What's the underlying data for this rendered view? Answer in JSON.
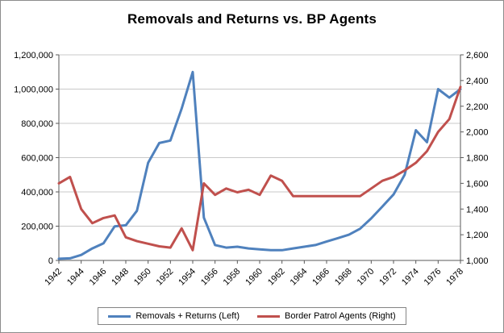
{
  "colors": {
    "series_blue": "#4F81BD",
    "series_red": "#C0504D",
    "gridline": "#C9C9C9",
    "axis": "#595959",
    "text": "#000000",
    "frame_border": "#8C8C8C"
  },
  "chart_data": {
    "type": "line",
    "title": "Removals and Returns vs. BP Agents",
    "x": [
      1942,
      1943,
      1944,
      1945,
      1946,
      1947,
      1948,
      1949,
      1950,
      1951,
      1952,
      1953,
      1954,
      1955,
      1956,
      1957,
      1958,
      1959,
      1960,
      1961,
      1962,
      1963,
      1964,
      1965,
      1966,
      1967,
      1968,
      1969,
      1970,
      1971,
      1972,
      1973,
      1974,
      1975,
      1976,
      1977,
      1978
    ],
    "x_label_every": 2,
    "x_tick_labels": [
      "1942",
      "1944",
      "1946",
      "1948",
      "1950",
      "1952",
      "1954",
      "1956",
      "1958",
      "1960",
      "1962",
      "1964",
      "1966",
      "1968",
      "1970",
      "1972",
      "1974",
      "1976",
      "1978"
    ],
    "left_axis": {
      "min": 0,
      "max": 1200000,
      "step": 200000,
      "tick_labels": [
        "0",
        "200,000",
        "400,000",
        "600,000",
        "800,000",
        "1,000,000",
        "1,200,000"
      ]
    },
    "right_axis": {
      "min": 1000,
      "max": 2600,
      "step": 200,
      "tick_labels": [
        "1,000",
        "1,200",
        "1,400",
        "1,600",
        "1,800",
        "2,000",
        "2,200",
        "2,400",
        "2,600"
      ]
    },
    "grid": true,
    "legend_position": "bottom",
    "series": [
      {
        "id": "removals-returns",
        "name": "Removals + Returns (Left)",
        "axis": "left",
        "color": "#4F81BD",
        "values": [
          10000,
          12000,
          32000,
          70000,
          100000,
          199000,
          205000,
          290000,
          570000,
          685000,
          700000,
          885000,
          1100000,
          250000,
          90000,
          75000,
          80000,
          70000,
          65000,
          60000,
          60000,
          70000,
          80000,
          90000,
          110000,
          130000,
          150000,
          185000,
          245000,
          315000,
          385000,
          500000,
          760000,
          690000,
          1000000,
          950000,
          1000000
        ]
      },
      {
        "id": "border-patrol-agents",
        "name": "Border Patrol Agents (Right)",
        "axis": "right",
        "color": "#C0504D",
        "values": [
          1600,
          1650,
          1400,
          1290,
          1330,
          1350,
          1180,
          1150,
          1130,
          1110,
          1100,
          1250,
          1080,
          1600,
          1510,
          1560,
          1530,
          1550,
          1510,
          1660,
          1620,
          1500,
          1500,
          1500,
          1500,
          1500,
          1500,
          1500,
          1560,
          1620,
          1650,
          1700,
          1760,
          1850,
          2000,
          2100,
          2350
        ]
      }
    ]
  }
}
